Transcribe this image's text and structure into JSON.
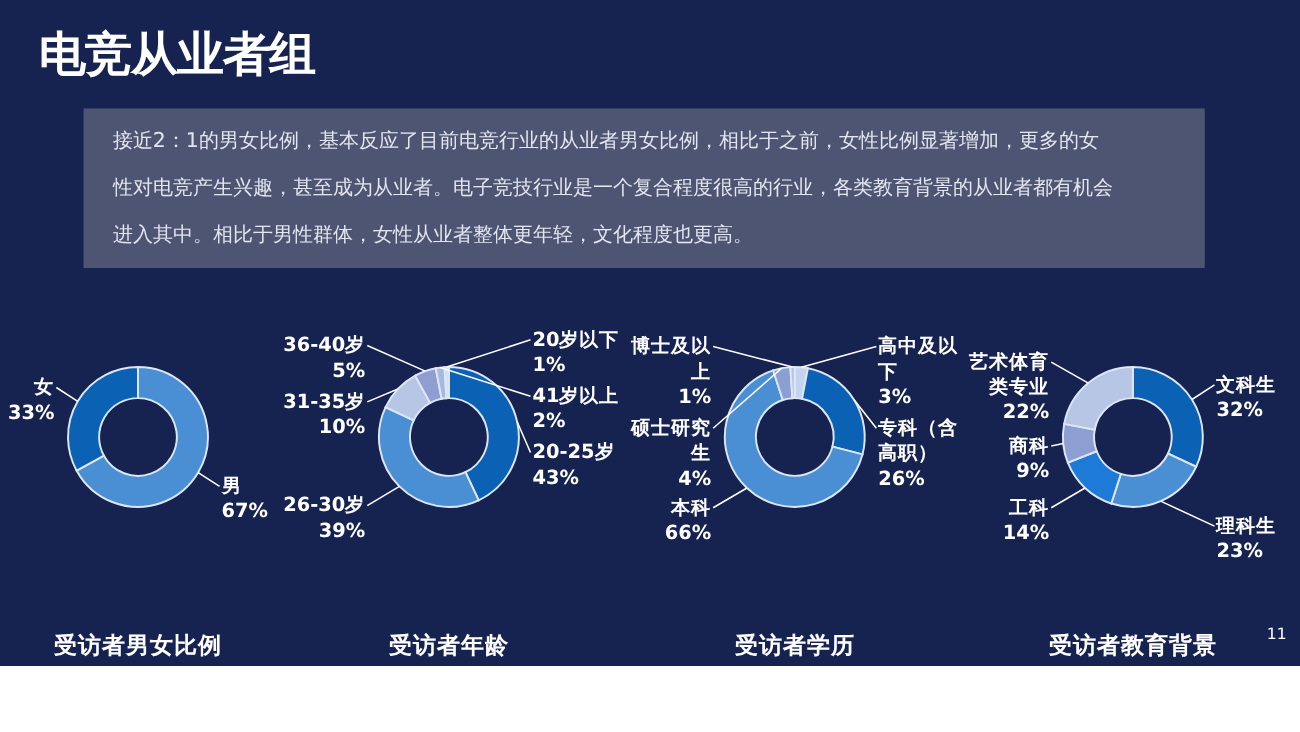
{
  "chart_data": [
    {
      "type": "other",
      "title": "电竞从业者组",
      "annotations": [
        "接近2：1的男女比例，基本反应了目前电竞行业的从业者男女比例，相比于之前，女性比例显著增加，更多的女性对电竞产生兴趣，甚至成为从业者。电子竞技行业是一个复合程度很高的行业，各类教育背景的从业者都有机会进入其中。相比于男性群体，女性从业者整体更年轻，文化程度也更高。",
        "11"
      ]
    },
    {
      "type": "donut",
      "title": "受访者男女比例",
      "categories": [
        "男",
        "女"
      ],
      "values": [
        67,
        33
      ],
      "value_labels": [
        "67%",
        "33%"
      ],
      "colors": [
        "#4a8fd4",
        "#0b62b5"
      ]
    },
    {
      "type": "donut",
      "title": "受访者年龄",
      "categories": [
        "20-25岁",
        "26-30岁",
        "31-35岁",
        "36-40岁",
        "41岁以上",
        "20岁以下"
      ],
      "values": [
        43,
        39,
        10,
        5,
        2,
        1
      ],
      "value_labels": [
        "43%",
        "39%",
        "10%",
        "5%",
        "2%",
        "1%"
      ],
      "colors": [
        "#0b62b5",
        "#4a8fd4",
        "#b8c6e6",
        "#8f9dd0",
        "#a7b8e0",
        "#d5e0f2"
      ]
    },
    {
      "type": "donut",
      "title": "受访者学历",
      "categories": [
        "高中及以下",
        "专科（含高职）",
        "本科",
        "硕士研究生",
        "博士及以上"
      ],
      "values": [
        3,
        26,
        66,
        4,
        1
      ],
      "value_labels": [
        "3%",
        "26%",
        "66%",
        "4%",
        "1%"
      ],
      "colors": [
        "#c5d3ee",
        "#0b62b5",
        "#4a8fd4",
        "#8d9fd2",
        "#b6c4e8"
      ]
    },
    {
      "type": "donut",
      "title": "受访者教育背景",
      "categories": [
        "文科生",
        "理科生",
        "工科",
        "商科",
        "艺术体育类专业"
      ],
      "values": [
        32,
        23,
        14,
        9,
        22
      ],
      "value_labels": [
        "32%",
        "23%",
        "14%",
        "9%",
        "22%"
      ],
      "colors": [
        "#0b62b5",
        "#4a8fd4",
        "#1d7ad6",
        "#8d9fd2",
        "#b8c6e6"
      ]
    }
  ]
}
